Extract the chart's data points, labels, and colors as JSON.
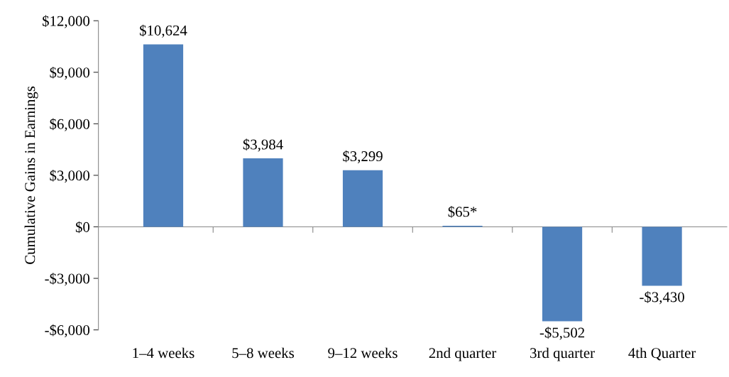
{
  "chart_data": {
    "type": "bar",
    "ylabel": "Cumulative Gains in Earnings",
    "categories": [
      "1–4 weeks",
      "5–8 weeks",
      "9–12 weeks",
      "2nd quarter",
      "3rd quarter",
      "4th Quarter"
    ],
    "values": [
      10624,
      3984,
      3299,
      65,
      -5502,
      -3430
    ],
    "value_labels": [
      "$10,624",
      "$3,984",
      "$3,299",
      "$65*",
      "-$5,502",
      "-$3,430"
    ],
    "color": "#4f81bd",
    "ylim": [
      -6000,
      12000
    ],
    "yticks": [
      {
        "value": -6000,
        "label": "-$6,000"
      },
      {
        "value": -3000,
        "label": "-$3,000"
      },
      {
        "value": 0,
        "label": "$0"
      },
      {
        "value": 3000,
        "label": "$3,000"
      },
      {
        "value": 6000,
        "label": "$6,000"
      },
      {
        "value": 9000,
        "label": "$9,000"
      },
      {
        "value": 12000,
        "label": "$12,000"
      }
    ],
    "legend": false
  }
}
